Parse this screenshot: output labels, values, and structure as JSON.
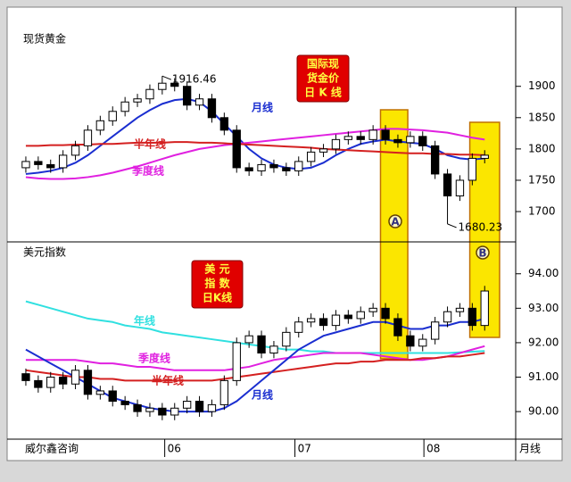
{
  "source": "威尔鑫咨询",
  "highlights": [
    {
      "label": "A",
      "from": 28.6,
      "to": 30.8
    },
    {
      "label": "B",
      "from": 35.8,
      "to": 38.2
    }
  ],
  "chart_data": [
    {
      "type": "candlestick",
      "title": "现货黄金",
      "title_lines": [
        "国际现",
        "货金价",
        "日 K 线"
      ],
      "xlim": [
        -0.5,
        39.5
      ],
      "ylim": [
        1653,
        1978
      ],
      "yticks": [
        1700,
        1750,
        1800,
        1850,
        1900
      ],
      "open": [
        1770,
        1780,
        1775,
        1770,
        1790,
        1805,
        1830,
        1845,
        1860,
        1875,
        1880,
        1895,
        1905,
        1900,
        1870,
        1880,
        1850,
        1830,
        1770,
        1765,
        1775,
        1770,
        1765,
        1780,
        1795,
        1800,
        1815,
        1820,
        1815,
        1830,
        1815,
        1810,
        1820,
        1805,
        1760,
        1725,
        1750,
        1785
      ],
      "high": [
        1788,
        1788,
        1783,
        1798,
        1813,
        1838,
        1853,
        1868,
        1883,
        1888,
        1903,
        1916.46,
        1913,
        1908,
        1888,
        1888,
        1858,
        1838,
        1778,
        1783,
        1783,
        1778,
        1788,
        1803,
        1808,
        1823,
        1828,
        1828,
        1838,
        1838,
        1823,
        1828,
        1828,
        1813,
        1768,
        1758,
        1793,
        1798
      ],
      "low": [
        1762,
        1767,
        1762,
        1762,
        1782,
        1797,
        1822,
        1837,
        1852,
        1867,
        1872,
        1887,
        1892,
        1862,
        1862,
        1842,
        1822,
        1762,
        1757,
        1757,
        1762,
        1757,
        1757,
        1772,
        1787,
        1792,
        1807,
        1807,
        1807,
        1807,
        1802,
        1802,
        1797,
        1752,
        1680.23,
        1717,
        1742,
        1777
      ],
      "close": [
        1780,
        1775,
        1770,
        1790,
        1805,
        1830,
        1845,
        1860,
        1875,
        1880,
        1895,
        1905,
        1900,
        1870,
        1880,
        1850,
        1830,
        1770,
        1765,
        1775,
        1770,
        1765,
        1780,
        1795,
        1800,
        1815,
        1820,
        1815,
        1830,
        1815,
        1810,
        1820,
        1805,
        1760,
        1725,
        1750,
        1785,
        1790
      ],
      "series": [
        {
          "name": "月线",
          "color": "#1a2ed0",
          "values": [
            1760,
            1762,
            1765,
            1770,
            1778,
            1790,
            1805,
            1820,
            1835,
            1850,
            1862,
            1872,
            1878,
            1880,
            1875,
            1860,
            1840,
            1820,
            1800,
            1785,
            1775,
            1770,
            1768,
            1770,
            1778,
            1790,
            1800,
            1808,
            1812,
            1815,
            1812,
            1810,
            1808,
            1800,
            1790,
            1785,
            1783,
            1785
          ]
        },
        {
          "name": "季度线",
          "color": "#e020e0",
          "values": [
            1755,
            1753,
            1752,
            1752,
            1753,
            1755,
            1758,
            1762,
            1767,
            1772,
            1778,
            1784,
            1790,
            1795,
            1800,
            1803,
            1806,
            1808,
            1810,
            1812,
            1814,
            1816,
            1818,
            1820,
            1822,
            1824,
            1826,
            1828,
            1830,
            1832,
            1832,
            1831,
            1830,
            1828,
            1826,
            1822,
            1818,
            1815
          ]
        },
        {
          "name": "半年线",
          "color": "#d42020",
          "values": [
            1805,
            1805,
            1806,
            1806,
            1807,
            1807,
            1808,
            1808,
            1809,
            1810,
            1810,
            1810,
            1811,
            1811,
            1810,
            1810,
            1809,
            1808,
            1807,
            1806,
            1805,
            1804,
            1803,
            1802,
            1800,
            1799,
            1798,
            1797,
            1796,
            1795,
            1794,
            1793,
            1793,
            1792,
            1792,
            1791,
            1791,
            1790
          ]
        }
      ]
    },
    {
      "type": "candlestick",
      "title": "美元指数",
      "title_lines": [
        "美 元",
        "指 数",
        "日K线"
      ],
      "xlim": [
        -0.5,
        39.5
      ],
      "ylim": [
        89.2,
        94.9
      ],
      "yticks": [
        {
          "value": 90,
          "label": "90.00"
        },
        {
          "value": 91,
          "label": "91.00"
        },
        {
          "value": 92,
          "label": "92.00"
        },
        {
          "value": 93,
          "label": "93.00"
        },
        {
          "value": 94,
          "label": "94.00"
        }
      ],
      "xticks": [
        {
          "value": 11.2,
          "label": "06"
        },
        {
          "value": 21.7,
          "label": "07"
        },
        {
          "value": 32.1,
          "label": "08"
        }
      ],
      "xlabel": "月线",
      "open": [
        91.1,
        90.9,
        90.7,
        91.0,
        90.8,
        91.2,
        90.5,
        90.6,
        90.3,
        90.2,
        90.0,
        90.1,
        89.9,
        90.1,
        90.3,
        90.0,
        90.2,
        90.9,
        92.0,
        92.2,
        91.7,
        91.9,
        92.3,
        92.6,
        92.7,
        92.5,
        92.8,
        92.7,
        92.9,
        93.0,
        92.7,
        92.2,
        91.9,
        92.1,
        92.6,
        92.9,
        93.0,
        92.5
      ],
      "high": [
        91.25,
        91.05,
        91.15,
        91.15,
        91.35,
        91.35,
        90.75,
        90.75,
        90.45,
        90.35,
        90.25,
        90.25,
        90.25,
        90.45,
        90.45,
        90.35,
        91.05,
        92.15,
        92.35,
        92.35,
        92.05,
        92.45,
        92.75,
        92.85,
        92.85,
        92.95,
        92.95,
        93.05,
        93.15,
        93.15,
        92.85,
        92.35,
        92.25,
        92.75,
        93.05,
        93.15,
        93.15,
        93.65
      ],
      "low": [
        90.75,
        90.55,
        90.55,
        90.65,
        90.65,
        90.35,
        90.35,
        90.15,
        90.05,
        89.85,
        89.85,
        89.75,
        89.75,
        89.95,
        89.85,
        89.85,
        90.05,
        90.75,
        91.85,
        91.55,
        91.55,
        91.75,
        92.15,
        92.45,
        92.35,
        92.35,
        92.55,
        92.55,
        92.75,
        92.55,
        92.05,
        91.75,
        91.75,
        91.95,
        92.45,
        92.75,
        92.35,
        92.35
      ],
      "close": [
        90.9,
        90.7,
        91.0,
        90.8,
        91.2,
        90.5,
        90.6,
        90.3,
        90.2,
        90.0,
        90.1,
        89.9,
        90.1,
        90.3,
        90.0,
        90.2,
        90.9,
        92.0,
        92.2,
        91.7,
        91.9,
        92.3,
        92.6,
        92.7,
        92.5,
        92.8,
        92.7,
        92.9,
        93.0,
        92.7,
        92.2,
        91.9,
        92.1,
        92.6,
        92.9,
        93.0,
        92.5,
        93.5
      ],
      "series": [
        {
          "name": "年线",
          "color": "#30e0e0",
          "values": [
            93.2,
            93.1,
            93.0,
            92.9,
            92.8,
            92.7,
            92.65,
            92.6,
            92.5,
            92.45,
            92.4,
            92.3,
            92.25,
            92.2,
            92.15,
            92.1,
            92.05,
            92.0,
            91.95,
            91.9,
            91.85,
            91.8,
            91.8,
            91.75,
            91.75,
            91.7,
            91.7,
            91.7,
            91.7,
            91.7,
            91.7,
            91.7,
            91.7,
            91.7,
            91.7,
            91.72,
            91.74,
            91.76
          ]
        },
        {
          "name": "季度线",
          "color": "#e020e0",
          "values": [
            91.5,
            91.5,
            91.5,
            91.5,
            91.5,
            91.45,
            91.4,
            91.4,
            91.35,
            91.3,
            91.3,
            91.25,
            91.2,
            91.2,
            91.2,
            91.2,
            91.2,
            91.25,
            91.3,
            91.4,
            91.5,
            91.55,
            91.6,
            91.65,
            91.7,
            91.7,
            91.7,
            91.7,
            91.65,
            91.6,
            91.55,
            91.5,
            91.5,
            91.55,
            91.6,
            91.7,
            91.8,
            91.9
          ]
        },
        {
          "name": "半年线",
          "color": "#d42020",
          "values": [
            91.2,
            91.15,
            91.1,
            91.05,
            91.0,
            91.0,
            90.95,
            90.95,
            90.9,
            90.9,
            90.9,
            90.9,
            90.9,
            90.9,
            90.9,
            90.9,
            90.95,
            91.0,
            91.05,
            91.1,
            91.15,
            91.2,
            91.25,
            91.3,
            91.35,
            91.4,
            91.4,
            91.45,
            91.45,
            91.5,
            91.5,
            91.5,
            91.55,
            91.55,
            91.6,
            91.6,
            91.65,
            91.7
          ]
        },
        {
          "name": "月线",
          "color": "#1a2ed0",
          "values": [
            91.8,
            91.6,
            91.4,
            91.2,
            91.0,
            90.8,
            90.6,
            90.4,
            90.3,
            90.2,
            90.1,
            90.05,
            90.0,
            90.0,
            90.0,
            90.0,
            90.1,
            90.3,
            90.6,
            90.9,
            91.2,
            91.5,
            91.8,
            92.0,
            92.2,
            92.3,
            92.4,
            92.5,
            92.6,
            92.6,
            92.5,
            92.4,
            92.4,
            92.5,
            92.5,
            92.6,
            92.6,
            92.7
          ]
        }
      ]
    }
  ]
}
